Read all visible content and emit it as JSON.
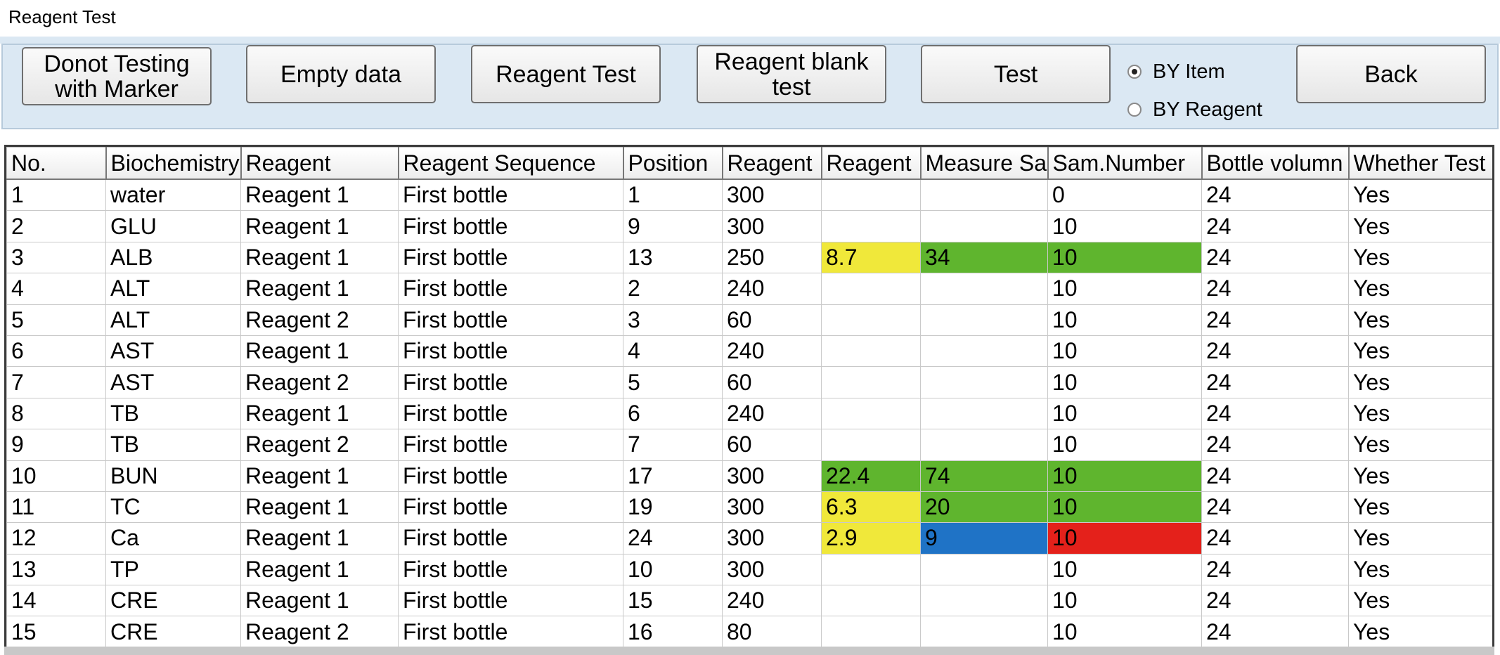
{
  "window": {
    "title": "Reagent Test"
  },
  "toolbar": {
    "buttons": [
      {
        "label": "Donot Testing\nwith Marker"
      },
      {
        "label": "Empty data"
      },
      {
        "label": "Reagent Test"
      },
      {
        "label": "Reagent blank\ntest"
      },
      {
        "label": "Test"
      },
      {
        "label": "Back"
      }
    ],
    "radios": [
      {
        "label": "BY Item",
        "checked": true
      },
      {
        "label": "BY Reagent",
        "checked": false
      }
    ]
  },
  "colors": {
    "yellow": "#f0e83a",
    "green": "#5fb52e",
    "blue": "#1f73c6",
    "red": "#e4211b",
    "panel": "#dbe8f3"
  },
  "table": {
    "columns": [
      "No.",
      "Biochemistry",
      "Reagent",
      "Reagent Sequence",
      "Position",
      "Reagent",
      "Reagent",
      "Measure Sa",
      "Sam.Number",
      "Bottle volumn",
      "Whether Test"
    ],
    "rows": [
      {
        "cells": [
          "1",
          "water",
          "Reagent 1",
          "First bottle",
          "1",
          "300",
          "",
          "",
          "0",
          "24",
          "Yes"
        ],
        "colors": {}
      },
      {
        "cells": [
          "2",
          "GLU",
          "Reagent 1",
          "First bottle",
          "9",
          "300",
          "",
          "",
          "10",
          "24",
          "Yes"
        ],
        "colors": {}
      },
      {
        "cells": [
          "3",
          "ALB",
          "Reagent 1",
          "First bottle",
          "13",
          "250",
          "8.7",
          "34",
          "10",
          "24",
          "Yes"
        ],
        "colors": {
          "6": "yellow",
          "7": "green",
          "8": "green"
        }
      },
      {
        "cells": [
          "4",
          "ALT",
          "Reagent 1",
          "First bottle",
          "2",
          "240",
          "",
          "",
          "10",
          "24",
          "Yes"
        ],
        "colors": {}
      },
      {
        "cells": [
          "5",
          "ALT",
          "Reagent 2",
          "First bottle",
          "3",
          "60",
          "",
          "",
          "10",
          "24",
          "Yes"
        ],
        "colors": {}
      },
      {
        "cells": [
          "6",
          "AST",
          "Reagent 1",
          "First bottle",
          "4",
          "240",
          "",
          "",
          "10",
          "24",
          "Yes"
        ],
        "colors": {}
      },
      {
        "cells": [
          "7",
          "AST",
          "Reagent 2",
          "First bottle",
          "5",
          "60",
          "",
          "",
          "10",
          "24",
          "Yes"
        ],
        "colors": {}
      },
      {
        "cells": [
          "8",
          "TB",
          "Reagent 1",
          "First bottle",
          "6",
          "240",
          "",
          "",
          "10",
          "24",
          "Yes"
        ],
        "colors": {}
      },
      {
        "cells": [
          "9",
          "TB",
          "Reagent 2",
          "First bottle",
          "7",
          "60",
          "",
          "",
          "10",
          "24",
          "Yes"
        ],
        "colors": {}
      },
      {
        "cells": [
          "10",
          "BUN",
          "Reagent 1",
          "First bottle",
          "17",
          "300",
          "22.4",
          "74",
          "10",
          "24",
          "Yes"
        ],
        "colors": {
          "6": "green",
          "7": "green",
          "8": "green"
        }
      },
      {
        "cells": [
          "11",
          "TC",
          "Reagent 1",
          "First bottle",
          "19",
          "300",
          "6.3",
          "20",
          "10",
          "24",
          "Yes"
        ],
        "colors": {
          "6": "yellow",
          "7": "green",
          "8": "green"
        }
      },
      {
        "cells": [
          "12",
          "Ca",
          "Reagent 1",
          "First bottle",
          "24",
          "300",
          "2.9",
          "9",
          "10",
          "24",
          "Yes"
        ],
        "colors": {
          "6": "yellow",
          "7": "blue",
          "8": "red"
        }
      },
      {
        "cells": [
          "13",
          "TP",
          "Reagent 1",
          "First bottle",
          "10",
          "300",
          "",
          "",
          "10",
          "24",
          "Yes"
        ],
        "colors": {}
      },
      {
        "cells": [
          "14",
          "CRE",
          "Reagent 1",
          "First bottle",
          "15",
          "240",
          "",
          "",
          "10",
          "24",
          "Yes"
        ],
        "colors": {}
      },
      {
        "cells": [
          "15",
          "CRE",
          "Reagent 2",
          "First bottle",
          "16",
          "80",
          "",
          "",
          "10",
          "24",
          "Yes"
        ],
        "colors": {}
      }
    ]
  }
}
